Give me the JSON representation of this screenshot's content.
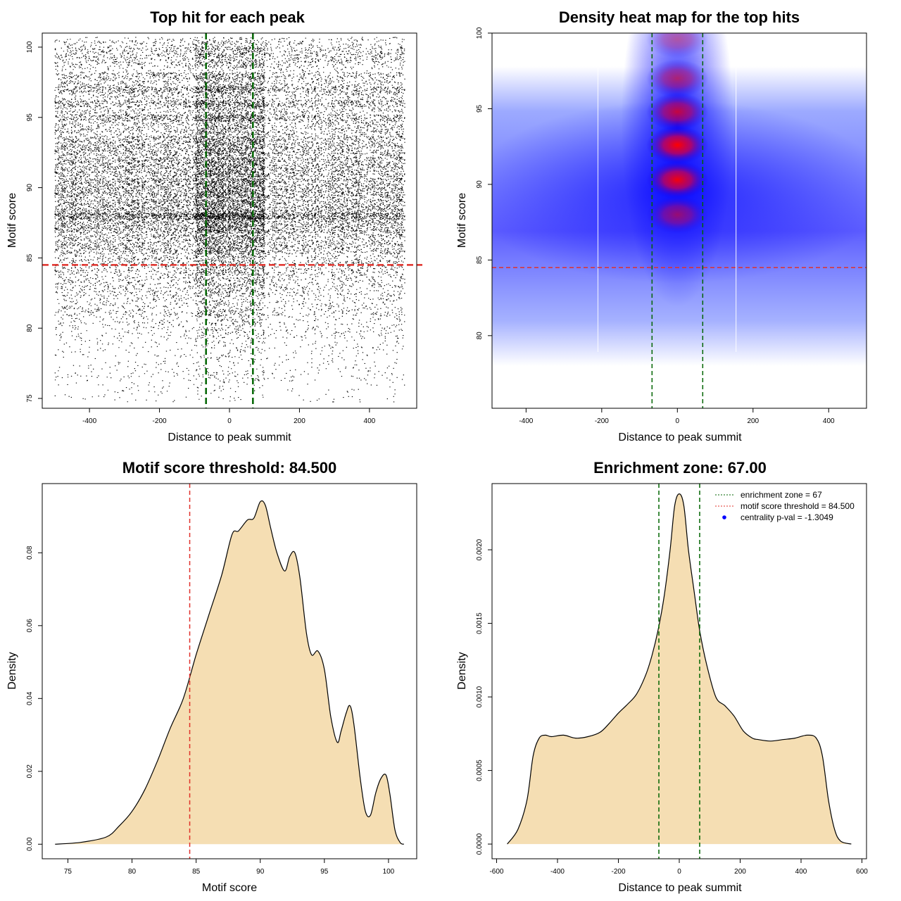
{
  "colors": {
    "threshold_line": "#e0302a",
    "zone_line": "#006400",
    "density_fill": "#f5deb3",
    "heat_low": "#ffffff",
    "heat_mid": "#0000ff",
    "heat_high": "#ff0000",
    "legend_point": "#0000ff"
  },
  "chart_data": [
    {
      "type": "scatter",
      "title": "Top hit for each peak",
      "xlabel": "Distance to peak summit",
      "ylabel": "Motif score",
      "xlim": [
        -535,
        535
      ],
      "ylim": [
        74.3,
        101.0
      ],
      "xticks": [
        -400,
        -200,
        0,
        200,
        400
      ],
      "yticks": [
        75,
        80,
        85,
        90,
        95,
        100
      ],
      "vlines": [
        -67,
        67
      ],
      "hline": 84.5,
      "x_range": [
        -500,
        500
      ],
      "score_bands": [
        {
          "score": 100.0,
          "weight": 3
        },
        {
          "score": 99.3,
          "weight": 3
        },
        {
          "score": 98.5,
          "weight": 2
        },
        {
          "score": 97.5,
          "weight": 5
        },
        {
          "score": 96.5,
          "weight": 5
        },
        {
          "score": 95.5,
          "weight": 5
        },
        {
          "score": 94.5,
          "weight": 6
        },
        {
          "score": 93.0,
          "weight": 9
        },
        {
          "score": 91.5,
          "weight": 10
        },
        {
          "score": 90.0,
          "weight": 11
        },
        {
          "score": 88.5,
          "weight": 11
        },
        {
          "score": 87.5,
          "weight": 11
        },
        {
          "score": 86.0,
          "weight": 8
        },
        {
          "score": 84.5,
          "weight": 5
        },
        {
          "score": 83.0,
          "weight": 4
        },
        {
          "score": 81.5,
          "weight": 3
        },
        {
          "score": 80.0,
          "weight": 2
        },
        {
          "score": 78.5,
          "weight": 1
        },
        {
          "score": 77.0,
          "weight": 1
        },
        {
          "score": 75.5,
          "weight": 0.5
        }
      ]
    },
    {
      "type": "heatmap",
      "title": "Density heat map for the top hits",
      "xlabel": "Distance to peak summit",
      "ylabel": "Motif score",
      "xlim": [
        -490,
        500
      ],
      "ylim": [
        75.2,
        100.0
      ],
      "xticks": [
        -400,
        -200,
        0,
        200,
        400
      ],
      "yticks": [
        80,
        85,
        90,
        95,
        100
      ],
      "vlines": [
        -67,
        67
      ],
      "hline": 84.5,
      "white_lines_x": [
        -210,
        155
      ],
      "hotspots": [
        {
          "x": 0,
          "y": 99.6,
          "intensity": 0.35
        },
        {
          "x": 0,
          "y": 97.0,
          "intensity": 0.55
        },
        {
          "x": 0,
          "y": 94.8,
          "intensity": 0.75
        },
        {
          "x": 0,
          "y": 92.6,
          "intensity": 1.0
        },
        {
          "x": 0,
          "y": 90.3,
          "intensity": 0.95
        },
        {
          "x": 0,
          "y": 88.0,
          "intensity": 0.55
        }
      ]
    },
    {
      "type": "area",
      "title": "Motif score threshold: 84.500",
      "xlabel": "Motif score",
      "ylabel": "Density",
      "xlim": [
        73.0,
        102.2
      ],
      "ylim": [
        -0.004,
        0.099
      ],
      "xticks": [
        75,
        80,
        85,
        90,
        95,
        100
      ],
      "yticks": [
        0.0,
        0.02,
        0.04,
        0.06,
        0.08
      ],
      "ytick_labels": [
        "0.00",
        "0.02",
        "0.04",
        "0.06",
        "0.08"
      ],
      "vline": 84.5,
      "x": [
        74.0,
        76.0,
        78.0,
        79.0,
        80.0,
        81.0,
        82.0,
        83.0,
        84.0,
        85.0,
        86.0,
        87.0,
        87.8,
        88.3,
        89.0,
        89.5,
        90.0,
        90.4,
        90.8,
        91.3,
        91.9,
        92.3,
        92.7,
        93.1,
        93.6,
        94.0,
        94.5,
        95.0,
        95.5,
        96.0,
        96.3,
        96.7,
        97.0,
        97.3,
        97.8,
        98.2,
        98.6,
        99.0,
        99.4,
        99.8,
        100.1,
        100.5,
        100.9,
        101.2
      ],
      "y": [
        0.0,
        0.0005,
        0.002,
        0.005,
        0.009,
        0.015,
        0.023,
        0.032,
        0.04,
        0.052,
        0.063,
        0.074,
        0.085,
        0.086,
        0.089,
        0.0895,
        0.094,
        0.093,
        0.087,
        0.08,
        0.075,
        0.079,
        0.08,
        0.073,
        0.058,
        0.052,
        0.053,
        0.048,
        0.035,
        0.028,
        0.031,
        0.036,
        0.038,
        0.033,
        0.018,
        0.009,
        0.008,
        0.014,
        0.018,
        0.019,
        0.014,
        0.004,
        0.0005,
        0.0
      ]
    },
    {
      "type": "area",
      "title": "Enrichment zone: 67.00",
      "xlabel": "Distance to peak summit",
      "ylabel": "Density",
      "xlim": [
        -615,
        615
      ],
      "ylim": [
        -0.0001,
        0.00245
      ],
      "xticks": [
        -600,
        -400,
        -200,
        0,
        200,
        400,
        600
      ],
      "yticks": [
        0.0,
        0.0005,
        0.001,
        0.0015,
        0.002
      ],
      "ytick_labels": [
        "0.0000",
        "0.0005",
        "0.0010",
        "0.0015",
        "0.0020"
      ],
      "vlines": [
        -67,
        67
      ],
      "x": [
        -565,
        -530,
        -500,
        -480,
        -460,
        -440,
        -420,
        -380,
        -340,
        -300,
        -260,
        -230,
        -200,
        -170,
        -140,
        -110,
        -90,
        -70,
        -50,
        -30,
        -15,
        0,
        15,
        30,
        50,
        67,
        90,
        120,
        150,
        180,
        210,
        240,
        260,
        300,
        340,
        380,
        420,
        450,
        470,
        490,
        510,
        530,
        565
      ],
      "y": [
        0.0,
        0.0001,
        0.0003,
        0.0006,
        0.00072,
        0.00074,
        0.00073,
        0.00074,
        0.00072,
        0.00073,
        0.00076,
        0.00082,
        0.00089,
        0.00095,
        0.00102,
        0.00115,
        0.00128,
        0.00145,
        0.00168,
        0.002,
        0.0023,
        0.00238,
        0.0023,
        0.002,
        0.0017,
        0.00145,
        0.00122,
        0.001,
        0.00094,
        0.00087,
        0.00077,
        0.00072,
        0.00071,
        0.0007,
        0.00071,
        0.00072,
        0.00074,
        0.00072,
        0.0006,
        0.0003,
        0.0001,
        2e-05,
        0.0
      ],
      "legend": {
        "position": "top-right",
        "entries": [
          {
            "label": "enrichment zone = 67",
            "style": "dotted",
            "color": "#006400"
          },
          {
            "label": "motif score threshold = 84.500",
            "style": "dotted",
            "color": "#e0302a"
          },
          {
            "label": "centrality p-val = -1.3049",
            "style": "point",
            "color": "#0000ff"
          }
        ]
      }
    }
  ]
}
